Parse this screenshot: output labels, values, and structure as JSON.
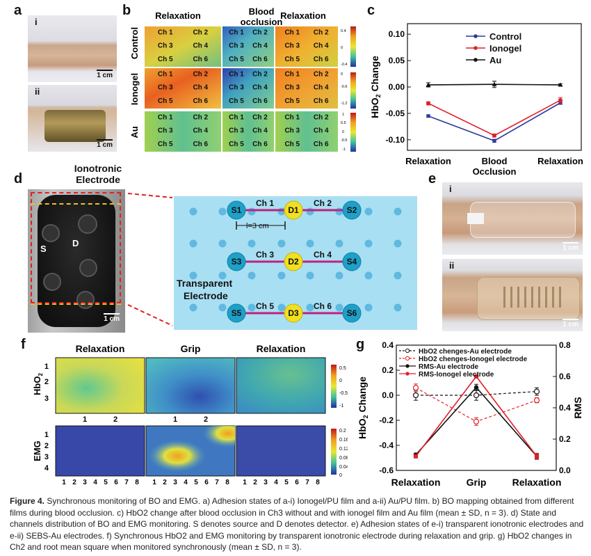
{
  "panels": {
    "a": "a",
    "b": "b",
    "c": "c",
    "d": "d",
    "e": "e",
    "f": "f",
    "g": "g"
  },
  "panel_a": {
    "sub_i": "i",
    "sub_ii": "ii",
    "scale": "1 cm"
  },
  "panel_b": {
    "columns": [
      "Relaxation",
      "Blood occlusion",
      "Relaxation"
    ],
    "rows": [
      "Control",
      "Ionogel",
      "Au"
    ],
    "channels": [
      "Ch 1",
      "Ch 2",
      "Ch 3",
      "Ch 4",
      "Ch 5",
      "Ch 6"
    ],
    "colorbars": [
      [
        "0.4",
        "0",
        "-0.4"
      ],
      [
        "0",
        "-0.6",
        "-1.2"
      ],
      [
        "1",
        "0.5",
        "0",
        "-0.5",
        "-1"
      ]
    ]
  },
  "panel_c": {
    "chart_data": {
      "type": "line",
      "categories": [
        "Relaxation",
        "Blood\nOcclusion",
        "Relaxation"
      ],
      "ylabel": "HbO2 Change",
      "ylim": [
        -0.12,
        0.12
      ],
      "yticks": [
        "0.10",
        "0.05",
        "0.00",
        "-0.05",
        "-0.10"
      ],
      "series": [
        {
          "name": "Control",
          "color": "#2b3a9a",
          "values": [
            -0.055,
            -0.102,
            -0.03
          ],
          "err": [
            0.002,
            0.003,
            0.003
          ]
        },
        {
          "name": "Ionogel",
          "color": "#e0202a",
          "values": [
            -0.031,
            -0.092,
            -0.025
          ],
          "err": [
            0.003,
            0.003,
            0.005
          ]
        },
        {
          "name": "Au",
          "color": "#111111",
          "values": [
            0.004,
            0.005,
            0.004
          ],
          "err": [
            0.004,
            0.006,
            0.002
          ]
        }
      ]
    }
  },
  "panel_d": {
    "title_line1": "Ionotronic",
    "title_line2": "Electrode",
    "S": "S",
    "D": "D",
    "scale": "1 cm",
    "nodes": [
      "S1",
      "D1",
      "S2",
      "S3",
      "D2",
      "S4",
      "S5",
      "D3",
      "S6"
    ],
    "channels": [
      "Ch 1",
      "Ch 2",
      "Ch 3",
      "Ch 4",
      "Ch 5",
      "Ch 6"
    ],
    "distance": "l=3 cm",
    "transparent_line1": "Transparent",
    "transparent_line2": "Electrode"
  },
  "panel_e": {
    "sub_i": "i",
    "sub_ii": "ii",
    "scale": "1 cm"
  },
  "panel_f": {
    "columns": [
      "Relaxation",
      "Grip",
      "Relaxation"
    ],
    "row_hbo2": "HbO2",
    "row_emg": "EMG",
    "hbo2_y": [
      "1",
      "2",
      "3"
    ],
    "hbo2_x": [
      "1",
      "2"
    ],
    "emg_y": [
      "1",
      "2",
      "3",
      "4"
    ],
    "emg_x": [
      "1",
      "2",
      "3",
      "4",
      "5",
      "6",
      "7",
      "8"
    ],
    "cbar_hbo2": [
      "0.5",
      "0",
      "-0.5",
      "-1"
    ],
    "cbar_emg": [
      "0.2",
      "0.16",
      "0.12",
      "0.08",
      "0.04",
      "0"
    ]
  },
  "panel_g": {
    "chart_data": {
      "type": "line",
      "categories": [
        "Relaxation",
        "Grip",
        "Relaxation"
      ],
      "ylabel": "HbO2 Change",
      "y2label": "RMS",
      "ylim": [
        -0.6,
        0.4
      ],
      "y2lim": [
        0.0,
        0.8
      ],
      "yticks": [
        "0.4",
        "0.2",
        "0.0",
        "-0.2",
        "-0.4",
        "-0.6"
      ],
      "y2ticks": [
        "0.8",
        "0.6",
        "0.4",
        "0.2",
        "0.0"
      ],
      "series": [
        {
          "name": "HbO2 chenges-Au electrode",
          "axis": "left",
          "style": "dash-open",
          "color": "#111111",
          "values": [
            0.0,
            0.0,
            0.03
          ],
          "err": [
            0.04,
            0.04,
            0.03
          ]
        },
        {
          "name": "HbO2 chenges-Ionogel electrode",
          "axis": "left",
          "style": "dash-open",
          "color": "#e0202a",
          "values": [
            0.06,
            -0.21,
            -0.04
          ],
          "err": [
            0.03,
            0.03,
            0.02
          ]
        },
        {
          "name": "RMS-Au electrode",
          "axis": "right",
          "style": "solid-filled",
          "color": "#111111",
          "values": [
            0.1,
            0.53,
            0.09
          ],
          "err": [
            0.01,
            0.02,
            0.015
          ]
        },
        {
          "name": "RMS-Ionogel electrode",
          "axis": "right",
          "style": "solid-filled",
          "color": "#e0202a",
          "values": [
            0.09,
            0.6,
            0.09
          ],
          "err": [
            0.01,
            0.01,
            0.02
          ]
        }
      ]
    }
  },
  "caption": {
    "title": "Figure 4.",
    "body": "Synchronous monitoring of BO and EMG. a) Adhesion states of a-i) Ionogel/PU film and a-ii) Au/PU film. b) BO mapping obtained from different films during blood occlusion. c) HbO2 change after blood occlusion in Ch3 without and with ionogel film and Au film (mean ± SD, n = 3). d) State and channels distribution of BO and EMG monitoring. S denotes source and D denotes detector. e) Adhesion states of e-i) transparent ionotronic electrodes and e-ii) SEBS-Au electrodes. f) Synchronous HbO2 and EMG monitoring by transparent ionotronic electrode during relaxation and grip. g) HbO2 changes in Ch2 and root mean square when monitored synchronously (mean ± SD, n = 3)."
  }
}
